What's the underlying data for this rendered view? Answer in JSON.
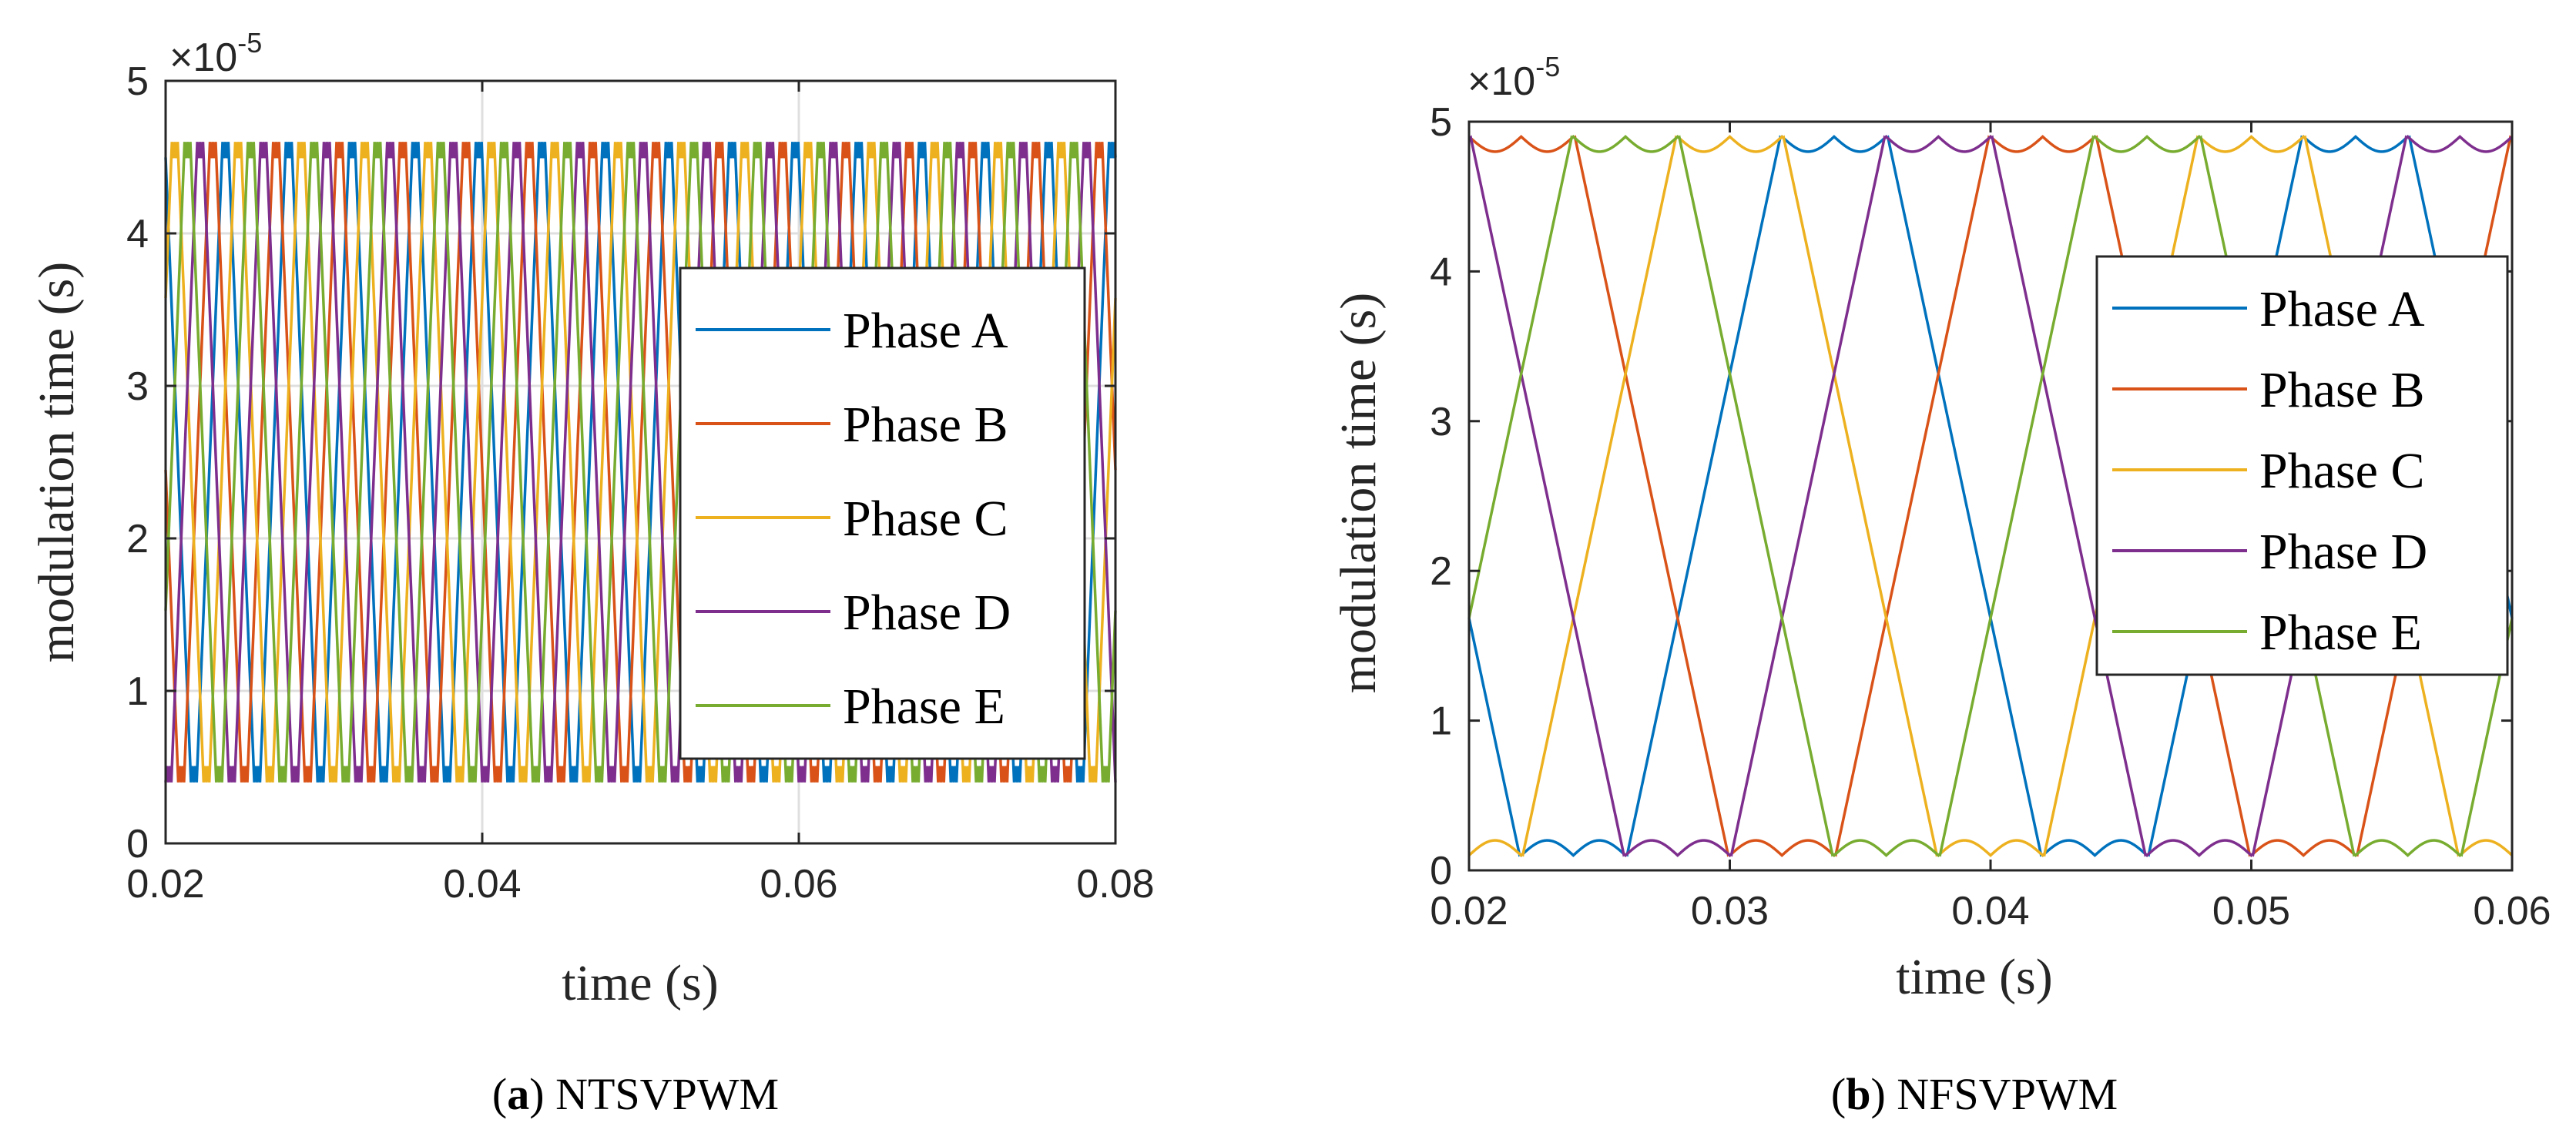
{
  "colors": {
    "Phase A": "#0072BD",
    "Phase B": "#D95319",
    "Phase C": "#EDB120",
    "Phase D": "#7E2F8E",
    "Phase E": "#77AC30"
  },
  "chart_data": [
    {
      "type": "line",
      "caption_letter": "a",
      "caption_text": "NTSVPWM",
      "title": "",
      "xlabel": "time (s)",
      "ylabel": "modulation time (s)",
      "y_multiplier_base": "×10",
      "y_multiplier_exp": "-5",
      "xlim": [
        0.02,
        0.08
      ],
      "ylim": [
        0,
        5
      ],
      "xticks": [
        0.02,
        0.04,
        0.06,
        0.08
      ],
      "xtick_labels": [
        "0.02",
        "0.04",
        "0.06",
        "0.08"
      ],
      "yticks": [
        0,
        1,
        2,
        3,
        4,
        5
      ],
      "ytick_labels": [
        "0",
        "1",
        "2",
        "3",
        "4",
        "5"
      ],
      "grid": true,
      "legend_position": "right",
      "waveform": {
        "shape": "triangular",
        "period": 0.004,
        "min": 0.4,
        "max": 4.6,
        "ripple": 0.2,
        "rise_fraction": 0.5
      },
      "series": [
        {
          "name": "Phase A",
          "phase_offset": 0.0016
        },
        {
          "name": "Phase B",
          "phase_offset": 0.0008
        },
        {
          "name": "Phase C",
          "phase_offset": 0.0024
        },
        {
          "name": "Phase D",
          "phase_offset": 0.0
        },
        {
          "name": "Phase E",
          "phase_offset": 0.0032
        }
      ]
    },
    {
      "type": "line",
      "caption_letter": "b",
      "caption_text": "NFSVPWM",
      "title": "",
      "xlabel": "time (s)",
      "ylabel": "modulation time (s)",
      "y_multiplier_base": "×10",
      "y_multiplier_exp": "-5",
      "xlim": [
        0.02,
        0.06
      ],
      "ylim": [
        0,
        5
      ],
      "xticks": [
        0.02,
        0.03,
        0.04,
        0.05,
        0.06
      ],
      "xtick_labels": [
        "0.02",
        "0.03",
        "0.04",
        "0.05",
        "0.06"
      ],
      "yticks": [
        0,
        1,
        2,
        3,
        4,
        5
      ],
      "ytick_labels": [
        "0",
        "1",
        "2",
        "3",
        "4",
        "5"
      ],
      "grid": false,
      "legend_position": "right",
      "waveform": {
        "shape": "trapezoidal",
        "period": 0.02,
        "min": 0.1,
        "max": 4.9,
        "ripple": 0.1
      },
      "series": [
        {
          "name": "Phase A",
          "phase_offset": 0.004
        },
        {
          "name": "Phase B",
          "phase_offset": 0.012
        },
        {
          "name": "Phase C",
          "phase_offset": 0.0
        },
        {
          "name": "Phase D",
          "phase_offset": 0.008
        },
        {
          "name": "Phase E",
          "phase_offset": 0.016
        }
      ]
    }
  ]
}
